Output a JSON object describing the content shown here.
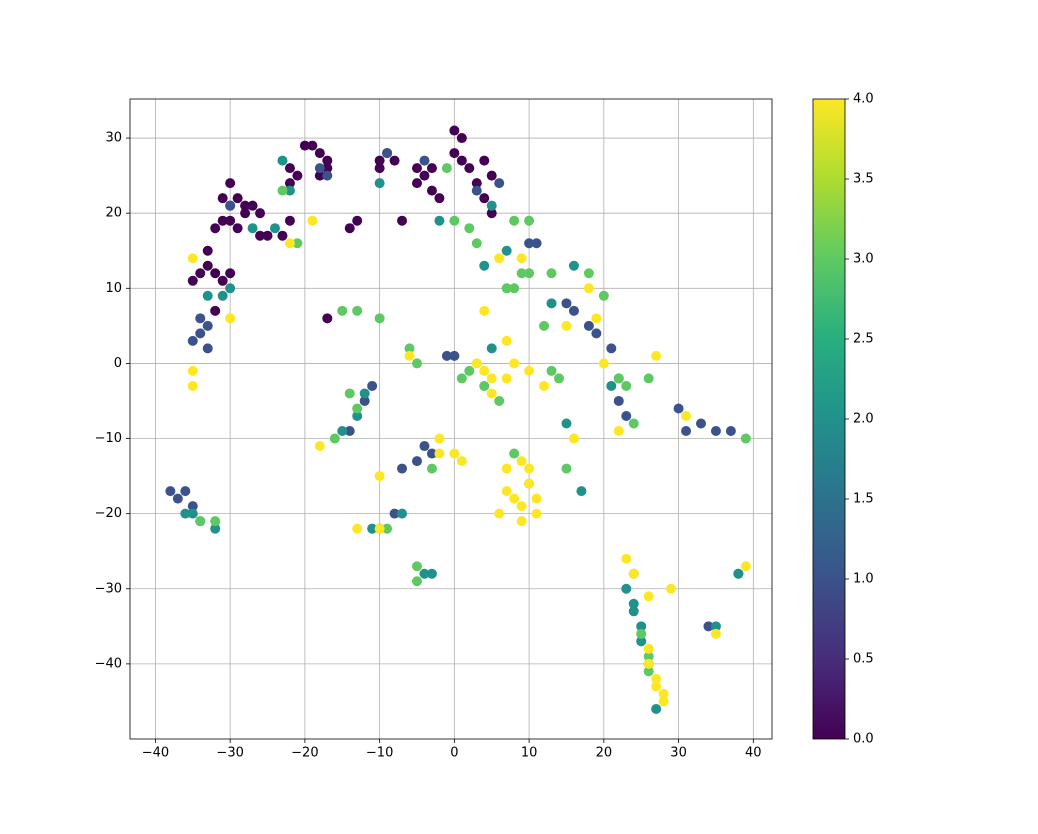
{
  "chart_data": {
    "type": "scatter",
    "xlim": [
      -43.4,
      42.5
    ],
    "ylim": [
      -50,
      35.2
    ],
    "xticks": [
      {
        "value": -40,
        "label": "−40"
      },
      {
        "value": -30,
        "label": "−30"
      },
      {
        "value": -20,
        "label": "−20"
      },
      {
        "value": -10,
        "label": "−10"
      },
      0,
      10,
      20,
      30,
      40
    ],
    "yticks": [
      {
        "value": -40,
        "label": "−40"
      },
      {
        "value": -30,
        "label": "−30"
      },
      {
        "value": -20,
        "label": "−20"
      },
      {
        "value": -10,
        "label": "−10"
      },
      0,
      10,
      20,
      30
    ],
    "grid": true,
    "colormap": "viridis",
    "colorbar": {
      "clim": [
        0,
        4
      ],
      "ticks": [
        {
          "value": 0,
          "label": "0.0"
        },
        {
          "value": 0.5,
          "label": "0.5"
        },
        {
          "value": 1,
          "label": "1.0"
        },
        {
          "value": 1.5,
          "label": "1.5"
        },
        {
          "value": 2,
          "label": "2.0"
        },
        {
          "value": 2.5,
          "label": "2.5"
        },
        {
          "value": 3,
          "label": "3.0"
        },
        {
          "value": 3.5,
          "label": "3.5"
        },
        {
          "value": 4,
          "label": "4.0"
        }
      ]
    },
    "series": [
      {
        "color_value": 0,
        "x": [
          -34,
          -33,
          -32,
          -31,
          -33,
          -32,
          -31,
          -30,
          -29,
          -31,
          -30,
          -29,
          -28,
          -27,
          -26,
          -30,
          -22,
          -21,
          -22,
          -20,
          -19,
          -18,
          -17,
          -17,
          -18,
          -23,
          -25,
          -22,
          -10,
          -9,
          -10,
          -8,
          -5,
          -4,
          -3,
          -5,
          -3,
          -2,
          0,
          1,
          0,
          1,
          2,
          4,
          5,
          3,
          4,
          5,
          -17,
          -14,
          -13,
          -7,
          -30,
          -35,
          -32,
          -28,
          -26
        ],
        "values": [
          12,
          13,
          12,
          11,
          15,
          18,
          19,
          19,
          18,
          22,
          21,
          22,
          21,
          21,
          20,
          24,
          24,
          25,
          26,
          29,
          29,
          28,
          27,
          26,
          25,
          17,
          17,
          19,
          27,
          28,
          26,
          27,
          26,
          25,
          26,
          24,
          23,
          22,
          31,
          30,
          28,
          27,
          26,
          27,
          25,
          24,
          22,
          20,
          6,
          18,
          19,
          19,
          12,
          11,
          7,
          20,
          17
        ]
      },
      {
        "color_value": 1,
        "x": [
          -34,
          -35,
          -33,
          -34,
          -33,
          -30,
          -18,
          -17,
          -9,
          -4,
          3,
          6,
          10,
          11,
          15,
          16,
          18,
          19,
          21,
          22,
          23,
          30,
          31,
          33,
          35,
          37,
          -12,
          -11,
          -14,
          -4,
          -3,
          -5,
          -38,
          -37,
          -36,
          -35,
          -34,
          -7,
          -8,
          -10,
          34,
          38,
          -1,
          0
        ],
        "values": [
          4,
          3,
          5,
          6,
          2,
          21,
          26,
          25,
          28,
          27,
          23,
          24,
          16,
          16,
          8,
          7,
          5,
          4,
          2,
          -5,
          -7,
          -6,
          -9,
          -8,
          -9,
          -9,
          -5,
          -3,
          -9,
          -11,
          -12,
          -13,
          -17,
          -18,
          -17,
          -19,
          -21,
          -14,
          -20,
          -22,
          -35,
          -28,
          1,
          1
        ]
      },
      {
        "color_value": 2,
        "x": [
          -23,
          -31,
          -33,
          -30,
          -27,
          -24,
          -22,
          -10,
          5,
          4,
          7,
          5,
          -15,
          -12,
          -13,
          24,
          24,
          25,
          24,
          25,
          26,
          27,
          23,
          -36,
          -35,
          -32,
          -11,
          -7,
          -4,
          -3,
          15,
          17,
          21,
          22,
          38,
          35,
          13,
          16,
          -2
        ],
        "values": [
          27,
          9,
          9,
          10,
          18,
          18,
          23,
          24,
          21,
          13,
          15,
          2,
          -9,
          -4,
          -7,
          -28,
          -32,
          -35,
          -33,
          -37,
          -40,
          -46,
          -30,
          -20,
          -20,
          -22,
          -22,
          -20,
          -28,
          -28,
          -8,
          -17,
          -3,
          -2,
          -28,
          -35,
          8,
          13,
          19
        ]
      },
      {
        "color_value": 3,
        "x": [
          -23,
          -21,
          -15,
          -13,
          -10,
          -6,
          -5,
          -14,
          -13,
          -16,
          -5,
          -5,
          -3,
          -32,
          -34,
          8,
          10,
          8,
          9,
          7,
          10,
          13,
          18,
          20,
          22,
          23,
          24,
          26,
          25,
          26,
          26,
          1,
          2,
          14,
          13,
          8,
          10,
          15,
          39,
          -9,
          4,
          6,
          -1,
          0,
          3,
          2,
          12
        ],
        "values": [
          23,
          16,
          7,
          7,
          6,
          2,
          0,
          -4,
          -6,
          -10,
          -27,
          -29,
          -14,
          -21,
          -21,
          19,
          19,
          10,
          12,
          10,
          12,
          12,
          12,
          9,
          -2,
          -3,
          -8,
          -2,
          -36,
          -39,
          -41,
          -2,
          -1,
          -2,
          -1,
          -12,
          -16,
          -14,
          -10,
          -22,
          -3,
          -5,
          26,
          19,
          16,
          18,
          5
        ]
      },
      {
        "color_value": 4,
        "x": [
          -35,
          -35,
          -35,
          -30,
          -22,
          -19,
          -18,
          -13,
          -10,
          -10,
          -6,
          -2,
          -2,
          0,
          1,
          6,
          7,
          7,
          8,
          9,
          9,
          10,
          10,
          11,
          4,
          5,
          5,
          4,
          7,
          8,
          7,
          10,
          12,
          16,
          18,
          19,
          20,
          22,
          23,
          24,
          26,
          26,
          27,
          28,
          28,
          27,
          29,
          26,
          35,
          39,
          27,
          6,
          9,
          15,
          3,
          31,
          9,
          11
        ],
        "values": [
          -1,
          -3,
          14,
          6,
          16,
          19,
          -11,
          -22,
          -22,
          -15,
          1,
          -10,
          -12,
          -12,
          -13,
          -20,
          -14,
          -17,
          -18,
          -13,
          -19,
          -16,
          -14,
          -18,
          -1,
          -2,
          -4,
          7,
          3,
          0,
          -2,
          -1,
          -3,
          -10,
          10,
          6,
          0,
          -9,
          -26,
          -28,
          -38,
          -40,
          -43,
          -44,
          -45,
          -42,
          -30,
          -31,
          -36,
          -27,
          1,
          14,
          14,
          5,
          0,
          -7,
          -21,
          -20
        ]
      }
    ]
  }
}
